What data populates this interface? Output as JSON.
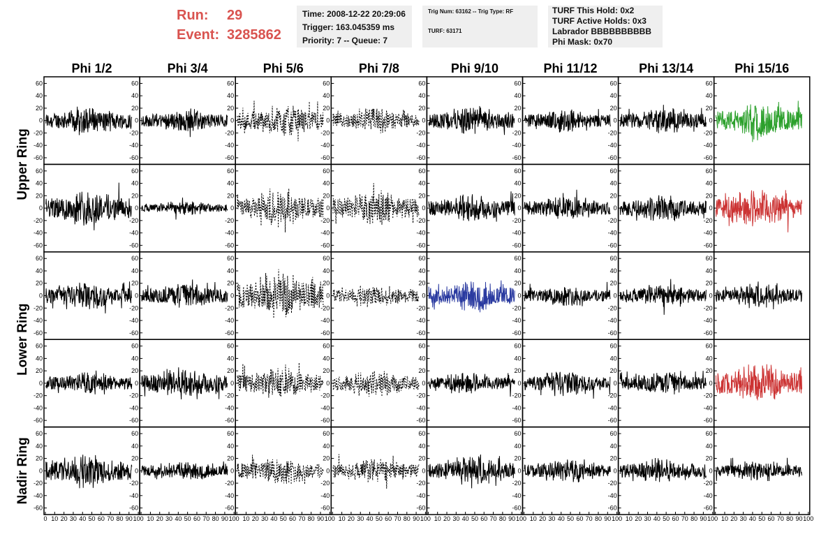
{
  "run": {
    "run_label": "Run:",
    "run_value": "29",
    "event_label": "Event:",
    "event_value": "3285862"
  },
  "info1": {
    "time": "Time: 2008-12-22 20:29:06",
    "trigger": "Trigger: 163.045359 ms",
    "priority": "Priority: 7 -- Queue: 7"
  },
  "info2": {
    "trig": "Trig Num: 63162 -- Trig Type: RF",
    "turf": "TURF: 63171"
  },
  "info3": {
    "hold": "TURF This Hold: 0x2",
    "active": "TURF Active Holds: 0x3",
    "labrador": "Labrador BBBBBBBBBB",
    "phimask": "Phi Mask: 0x70"
  },
  "colors": {
    "normal": "#000000",
    "green": "#2ca02c",
    "red": "#cc3333",
    "blue": "#2a3aa0",
    "run_text": "#d9534f"
  },
  "chart_data": {
    "type": "line",
    "columns": [
      "Phi 1/2",
      "Phi 3/4",
      "Phi 5/6",
      "Phi 7/8",
      "Phi 9/10",
      "Phi 11/12",
      "Phi 13/14",
      "Phi 15/16"
    ],
    "ring_labels": [
      {
        "label": "Upper Ring",
        "rows": [
          0,
          1
        ]
      },
      {
        "label": "Lower Ring",
        "rows": [
          2,
          3
        ]
      },
      {
        "label": "Nadir Ring",
        "rows": [
          4
        ]
      }
    ],
    "rows": 5,
    "xlim": [
      0,
      100
    ],
    "ylim": [
      -65,
      65
    ],
    "x_ticks": [
      0,
      10,
      20,
      30,
      40,
      50,
      60,
      70,
      80,
      90,
      100
    ],
    "y_ticks": [
      -60,
      -40,
      -20,
      0,
      20,
      40,
      60
    ],
    "dashed_columns": [
      2,
      3
    ],
    "highlighted_panels": [
      {
        "row": 0,
        "col": 7,
        "color": "green"
      },
      {
        "row": 1,
        "col": 7,
        "color": "red"
      },
      {
        "row": 2,
        "col": 4,
        "color": "blue"
      },
      {
        "row": 3,
        "col": 7,
        "color": "red"
      }
    ],
    "waveform_amplitude": [
      [
        12,
        10,
        14,
        11,
        12,
        10,
        11,
        15
      ],
      [
        16,
        6,
        15,
        16,
        12,
        11,
        12,
        16
      ],
      [
        12,
        11,
        20,
        10,
        13,
        9,
        10,
        10
      ],
      [
        10,
        14,
        14,
        12,
        9,
        11,
        10,
        17
      ],
      [
        15,
        8,
        12,
        11,
        12,
        10,
        11,
        9
      ]
    ]
  }
}
